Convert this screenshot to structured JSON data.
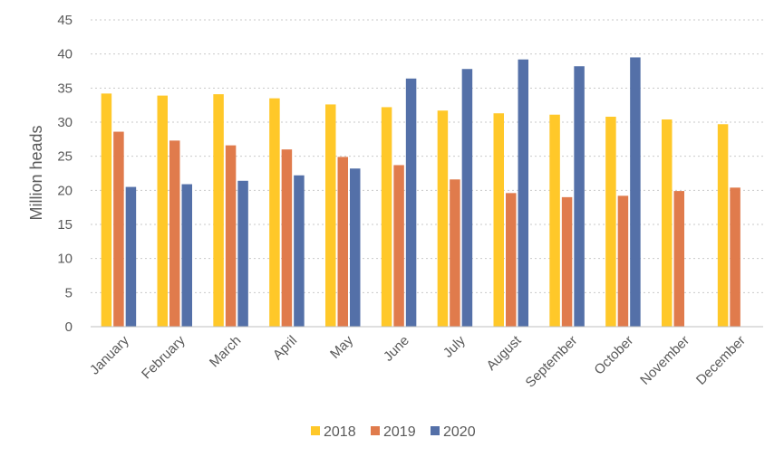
{
  "chart_data": {
    "type": "bar",
    "ylabel": "Million heads",
    "ylim": [
      0,
      45
    ],
    "yticks": [
      0,
      5,
      10,
      15,
      20,
      25,
      30,
      35,
      40,
      45
    ],
    "grid": true,
    "legend_position": "bottom",
    "categories": [
      "January",
      "February",
      "March",
      "April",
      "May",
      "June",
      "July",
      "August",
      "September",
      "October",
      "November",
      "December"
    ],
    "series": [
      {
        "name": "2018",
        "color": "#FFC829",
        "values": [
          34.2,
          33.9,
          34.1,
          33.5,
          32.6,
          32.2,
          31.7,
          31.3,
          31.1,
          30.8,
          30.4,
          29.7
        ]
      },
      {
        "name": "2019",
        "color": "#E07B4C",
        "values": [
          28.6,
          27.3,
          26.6,
          26.0,
          24.9,
          23.7,
          21.6,
          19.6,
          19.0,
          19.2,
          19.9,
          20.4
        ]
      },
      {
        "name": "2020",
        "color": "#5470A8",
        "values": [
          20.5,
          20.9,
          21.4,
          22.2,
          23.2,
          36.4,
          37.8,
          39.2,
          38.2,
          39.5,
          null,
          null
        ]
      }
    ]
  }
}
